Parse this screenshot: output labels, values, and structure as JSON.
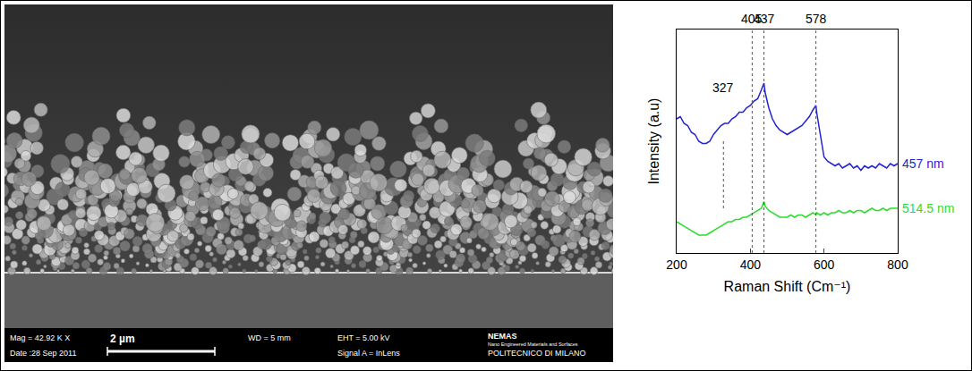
{
  "image_panel": {
    "info_bar": {
      "magnification": "Mag = 42.92 K X",
      "scale_bar": "2 µm",
      "working_distance": "WD = 5 mm",
      "voltage": "EHT = 5.00 kV",
      "signal": "Signal A = InLens",
      "date": "Date :28 Sep 2011",
      "lab": "NEMAS",
      "lab_name": "Nano Engineered Materials and Surfaces",
      "institution": "POLITECNICO DI MILANO"
    }
  },
  "chart_data": {
    "type": "line",
    "x_label": "Raman Shift (Cm⁻¹)",
    "y_label": "Intensity (a.u)",
    "x": [
      200,
      210,
      220,
      230,
      240,
      250,
      260,
      270,
      280,
      290,
      300,
      310,
      320,
      330,
      340,
      350,
      360,
      370,
      380,
      390,
      400,
      410,
      420,
      430,
      437,
      440,
      450,
      460,
      470,
      480,
      490,
      500,
      510,
      520,
      530,
      540,
      550,
      560,
      570,
      578,
      580,
      590,
      600,
      610,
      620,
      630,
      640,
      650,
      660,
      670,
      680,
      690,
      700,
      710,
      720,
      730,
      740,
      750,
      760,
      770,
      780,
      790,
      800
    ],
    "series": [
      {
        "name": "457 nm",
        "color": "#2323d2",
        "values": [
          6.0,
          6.1,
          5.8,
          5.7,
          5.4,
          5.3,
          5.0,
          4.9,
          4.9,
          5.0,
          5.3,
          5.5,
          5.7,
          5.8,
          5.8,
          6.0,
          6.1,
          6.3,
          6.3,
          6.5,
          6.6,
          6.8,
          6.9,
          7.3,
          7.6,
          7.2,
          6.5,
          6.0,
          5.7,
          5.5,
          5.4,
          5.3,
          5.4,
          5.5,
          5.6,
          5.7,
          5.9,
          6.1,
          6.4,
          6.6,
          6.3,
          5.2,
          4.3,
          4.1,
          4.0,
          3.9,
          4.0,
          3.8,
          3.9,
          4.0,
          3.8,
          3.9,
          3.7,
          3.9,
          3.8,
          3.9,
          3.8,
          4.0,
          3.9,
          3.8,
          4.0,
          3.9,
          4.0
        ]
      },
      {
        "name": "514.5 nm",
        "color": "#2edc2e",
        "values": [
          1.4,
          1.3,
          1.2,
          1.1,
          1.0,
          0.9,
          0.8,
          0.8,
          0.8,
          0.9,
          1.0,
          1.1,
          1.2,
          1.3,
          1.4,
          1.4,
          1.5,
          1.5,
          1.6,
          1.6,
          1.7,
          1.8,
          1.9,
          2.0,
          2.3,
          2.1,
          1.9,
          1.8,
          1.7,
          1.6,
          1.6,
          1.6,
          1.7,
          1.6,
          1.7,
          1.7,
          1.6,
          1.7,
          1.8,
          1.7,
          1.8,
          1.7,
          1.8,
          1.7,
          1.8,
          1.8,
          1.9,
          1.8,
          1.8,
          1.9,
          1.8,
          1.9,
          1.9,
          1.8,
          1.9,
          2.0,
          1.9,
          1.9,
          2.0,
          1.9,
          2.0,
          2.0,
          2.0
        ]
      }
    ],
    "xlim": [
      200,
      800
    ],
    "xticks": [
      200,
      400,
      600,
      800
    ],
    "ylim": [
      0,
      10
    ],
    "tick_labels": "x",
    "grid": false,
    "peak_lines": [
      405,
      437,
      578
    ],
    "peak_marks": [
      327
    ]
  }
}
